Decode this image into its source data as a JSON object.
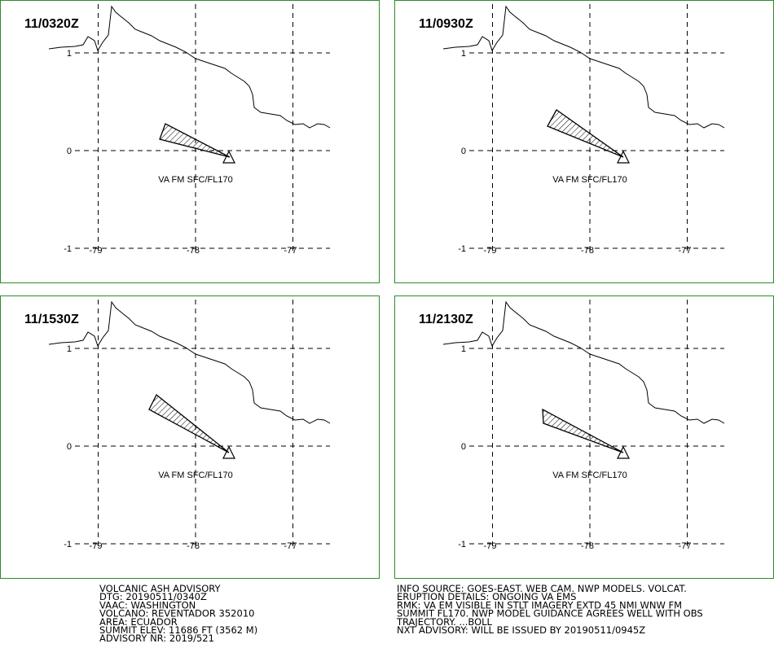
{
  "panels": [
    {
      "time": "11/0320Z",
      "label": "VA FM SFC/FL170"
    },
    {
      "time": "11/0930Z",
      "label": "VA FM SFC/FL170"
    },
    {
      "time": "11/1530Z",
      "label": "VA FM SFC/FL170"
    },
    {
      "time": "11/2130Z",
      "label": "VA FM SFC/FL170"
    }
  ],
  "grid": {
    "lat": [
      1,
      0,
      -1
    ],
    "lon": [
      -79,
      -78,
      -77
    ]
  },
  "advisory": {
    "left": [
      "VOLCANIC ASH ADVISORY",
      "DTG: 20190511/0340Z",
      "VAAC: WASHINGTON",
      "VOLCANO: REVENTADOR 352010",
      "AREA: ECUADOR",
      "SUMMIT ELEV: 11686 FT (3562 M)",
      "ADVISORY NR: 2019/521"
    ],
    "right": [
      "INFO SOURCE: GOES-EAST. WEB CAM. NWP MODELS. VOLCAT.",
      "ERUPTION DETAILS: ONGOING VA EMS",
      "RMK: VA EM VISIBLE IN STLT IMAGERY EXTD 45 NMI WNW FM",
      "SUMMIT FL170. NWP MODEL GUIDANCE AGREES WELL WITH OBS",
      "TRAJECTORY. ...BOLL",
      "NXT ADVISORY: WILL BE ISSUED BY 20190511/0945Z"
    ]
  }
}
